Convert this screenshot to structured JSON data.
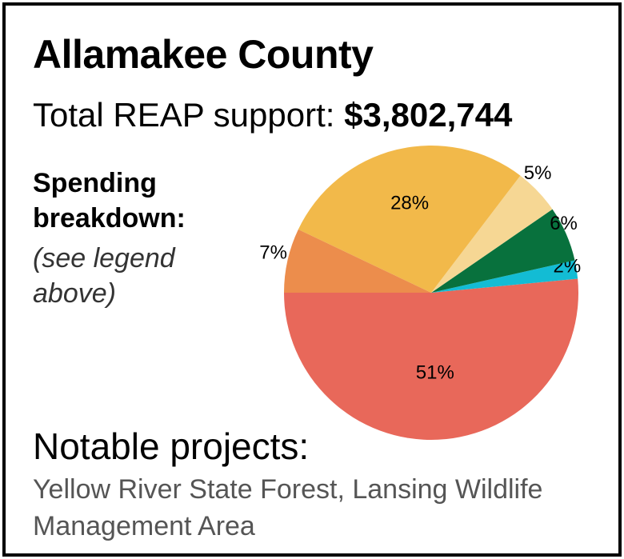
{
  "title": "Allamakee County",
  "total_label": "Total REAP support:",
  "total_value": "$3,802,744",
  "breakdown_title": "Spending breakdown:",
  "breakdown_note": "(see legend above)",
  "notable_title": "Notable projects:",
  "notable_text": "Yellow River State Forest, Lansing Wildlife Management Area",
  "chart_data": {
    "type": "pie",
    "slices": [
      {
        "value": 51,
        "label": "51%",
        "color": "#e8685a"
      },
      {
        "value": 2,
        "label": "2%",
        "color": "#13bcd4"
      },
      {
        "value": 6,
        "label": "6%",
        "color": "#08713d"
      },
      {
        "value": 5,
        "label": "5%",
        "color": "#f6d794"
      },
      {
        "value": 28,
        "label": "28%",
        "color": "#f2b94a"
      },
      {
        "value": 7,
        "label": "7%",
        "color": "#ec8d4c"
      }
    ]
  }
}
